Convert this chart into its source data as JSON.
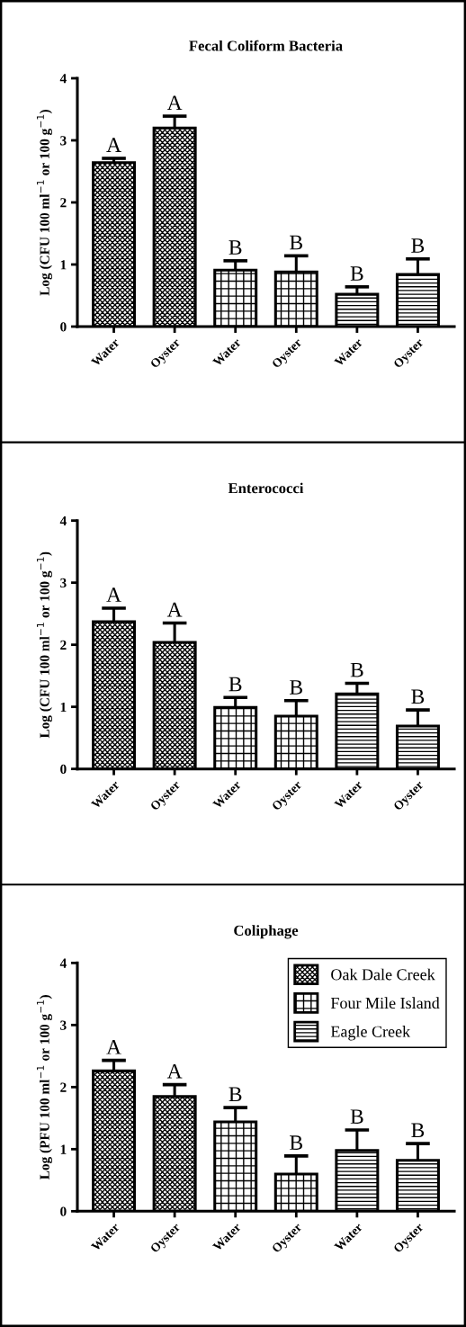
{
  "chart_data": [
    {
      "type": "bar",
      "title": "Fecal Coliform Bacteria",
      "ylabel": "Log (CFU 100 ml$^{−1}$ or 100 g$^{−1}$)",
      "categories": [
        "Water",
        "Oyster",
        "Water",
        "Oyster",
        "Water",
        "Oyster"
      ],
      "ylim": [
        0,
        4
      ],
      "yticks": [
        0,
        1,
        2,
        3,
        4
      ],
      "grid": false,
      "legend": false,
      "series": [
        {
          "color": "#000000",
          "values": [
            2.64,
            3.2,
            null,
            null,
            null,
            null
          ],
          "errors": [
            [
              2.64,
              2.71
            ],
            [
              3.2,
              3.39
            ],
            null,
            null,
            null,
            null
          ]
        },
        {
          "color": "#000000",
          "values": [
            null,
            null,
            0.91,
            0.88,
            null,
            null
          ],
          "errors": [
            null,
            null,
            [
              0.91,
              1.06
            ],
            [
              0.88,
              1.14
            ],
            null,
            null
          ]
        },
        {
          "color": "#000000",
          "values": [
            null,
            null,
            null,
            null,
            0.52,
            0.84
          ],
          "errors": [
            null,
            null,
            null,
            null,
            [
              0.52,
              0.64
            ],
            [
              0.84,
              1.09
            ]
          ]
        }
      ],
      "annotations": [
        "A",
        "A",
        "B",
        "B",
        "B",
        "B"
      ]
    },
    {
      "type": "bar",
      "title": "Enterococci",
      "ylabel": "Log (CFU 100 ml$^{−1}$ or 100 g$^{−1}$)",
      "categories": [
        "Water",
        "Oyster",
        "Water",
        "Oyster",
        "Water",
        "Oyster"
      ],
      "ylim": [
        0,
        4
      ],
      "yticks": [
        0,
        1,
        2,
        3,
        4
      ],
      "grid": false,
      "legend": false,
      "series": [
        {
          "color": "#000000",
          "values": [
            2.37,
            2.04,
            null,
            null,
            null,
            null
          ],
          "errors": [
            [
              2.37,
              2.59
            ],
            [
              2.04,
              2.35
            ],
            null,
            null,
            null,
            null
          ]
        },
        {
          "color": "#000000",
          "values": [
            null,
            null,
            0.99,
            0.85,
            null,
            null
          ],
          "errors": [
            null,
            null,
            [
              0.99,
              1.15
            ],
            [
              0.85,
              1.1
            ],
            null,
            null
          ]
        },
        {
          "color": "#000000",
          "values": [
            null,
            null,
            null,
            null,
            1.21,
            0.69
          ],
          "errors": [
            null,
            null,
            null,
            null,
            [
              1.21,
              1.38
            ],
            [
              0.69,
              0.95
            ]
          ]
        }
      ],
      "annotations": [
        "A",
        "A",
        "B",
        "B",
        "B",
        "B"
      ]
    },
    {
      "type": "bar",
      "title": "Coliphage",
      "ylabel": "Log (PFU 100 ml$^{−1}$ or 100 g$^{−1}$)",
      "categories": [
        "Water",
        "Oyster",
        "Water",
        "Oyster",
        "Water",
        "Oyster"
      ],
      "ylim": [
        0,
        4
      ],
      "yticks": [
        0,
        1,
        2,
        3,
        4
      ],
      "grid": false,
      "legend": "top right",
      "series": [
        {
          "name": "Oak Dale Creek",
          "color": "#000000",
          "values": [
            2.26,
            1.85,
            null,
            null,
            null,
            null
          ],
          "errors": [
            [
              2.26,
              2.43
            ],
            [
              1.85,
              2.04
            ],
            null,
            null,
            null,
            null
          ]
        },
        {
          "name": "Four Mile Island",
          "color": "#000000",
          "values": [
            null,
            null,
            1.44,
            0.6,
            null,
            null
          ],
          "errors": [
            null,
            null,
            [
              1.44,
              1.67
            ],
            [
              0.6,
              0.89
            ],
            null,
            null
          ]
        },
        {
          "name": "Eagle Creek",
          "color": "#000000",
          "values": [
            null,
            null,
            null,
            null,
            0.98,
            0.82
          ],
          "errors": [
            null,
            null,
            null,
            null,
            [
              0.98,
              1.31
            ],
            [
              0.82,
              1.09
            ]
          ]
        }
      ],
      "annotations": [
        "A",
        "A",
        "B",
        "B",
        "B",
        "B"
      ]
    }
  ]
}
